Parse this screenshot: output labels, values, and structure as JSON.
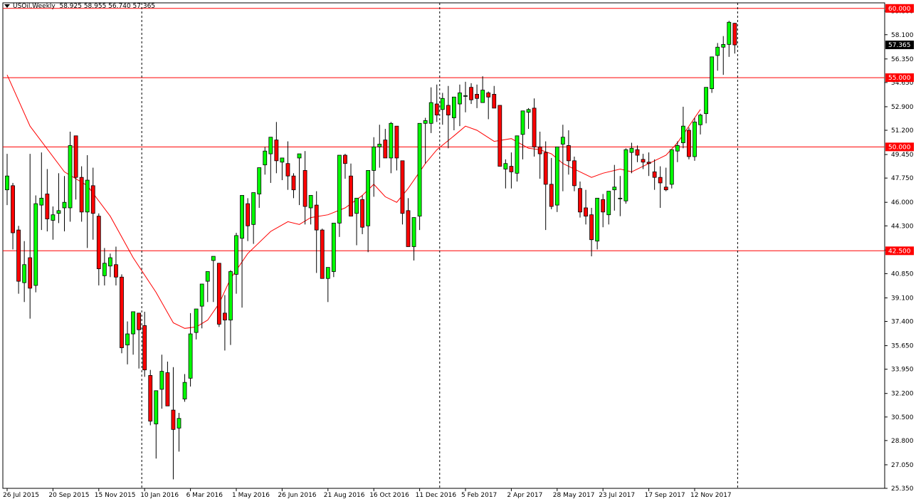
{
  "header": {
    "symbol": "USOil,Weekly",
    "ohlc": "58.925 58.955 56.740 57.365"
  },
  "chart_data": {
    "type": "candlestick",
    "symbol": "USOil",
    "timeframe": "Weekly",
    "ylim": [
      25.35,
      60.4
    ],
    "price_ticks": [
      "59.800",
      "58.100",
      "56.350",
      "54.650",
      "52.900",
      "51.200",
      "49.450",
      "47.750",
      "46.000",
      "44.300",
      "42.550",
      "40.850",
      "39.100",
      "37.400",
      "35.650",
      "33.950",
      "32.200",
      "30.500",
      "28.800",
      "27.050",
      "25.350"
    ],
    "date_ticks": [
      "26 Jul 2015",
      "20 Sep 2015",
      "15 Nov 2015",
      "10 Jan 2016",
      "6 Mar 2016",
      "1 May 2016",
      "26 Jun 2016",
      "21 Aug 2016",
      "16 Oct 2016",
      "11 Dec 2016",
      "5 Feb 2017",
      "2 Apr 2017",
      "28 May 2017",
      "23 Jul 2017",
      "17 Sep 2017",
      "12 Nov 2017"
    ],
    "date_tick_index": [
      0,
      8,
      16,
      24,
      32,
      40,
      48,
      56,
      64,
      72,
      80,
      88,
      96,
      104,
      112,
      120
    ],
    "horizontal_levels": [
      {
        "value": 60.0,
        "label": "60.000"
      },
      {
        "value": 55.0,
        "label": "55.000"
      },
      {
        "value": 50.0,
        "label": "50.000"
      },
      {
        "value": 42.5,
        "label": "42.500"
      }
    ],
    "current_price": {
      "value": 57.365,
      "label": "57.365"
    },
    "period_separators_index": [
      23.5,
      75.5,
      127.5
    ],
    "moving_average": {
      "color": "#ff0000",
      "points": [
        [
          0,
          55.2
        ],
        [
          4,
          51.5
        ],
        [
          10,
          48.2
        ],
        [
          14,
          47.2
        ],
        [
          18,
          45.0
        ],
        [
          22,
          42.0
        ],
        [
          26,
          39.5
        ],
        [
          29,
          37.3
        ],
        [
          31,
          36.9
        ],
        [
          33,
          37.0
        ],
        [
          35,
          37.5
        ],
        [
          37,
          38.7
        ],
        [
          39,
          40.5
        ],
        [
          42,
          42.3
        ],
        [
          46,
          43.9
        ],
        [
          49,
          44.6
        ],
        [
          51,
          44.4
        ],
        [
          53,
          44.9
        ],
        [
          56,
          45.1
        ],
        [
          59,
          45.6
        ],
        [
          62,
          46.5
        ],
        [
          64,
          47.3
        ],
        [
          66,
          46.4
        ],
        [
          68,
          46.0
        ],
        [
          70,
          47.0
        ],
        [
          73,
          48.8
        ],
        [
          75,
          49.8
        ],
        [
          78,
          50.8
        ],
        [
          80,
          51.5
        ],
        [
          82,
          51.2
        ],
        [
          85,
          50.4
        ],
        [
          88,
          50.6
        ],
        [
          91,
          49.9
        ],
        [
          93,
          49.8
        ],
        [
          95,
          49.5
        ],
        [
          97,
          48.8
        ],
        [
          100,
          48.2
        ],
        [
          102,
          47.8
        ],
        [
          104,
          48.1
        ],
        [
          107,
          48.4
        ],
        [
          109,
          48.2
        ],
        [
          111,
          48.6
        ],
        [
          113,
          49.0
        ],
        [
          115,
          49.4
        ],
        [
          117,
          50.3
        ],
        [
          119,
          51.5
        ],
        [
          121,
          52.7
        ]
      ]
    },
    "candles_ohlc": [
      [
        46.9,
        49.5,
        45.8,
        47.9
      ],
      [
        47.2,
        47.4,
        42.6,
        43.8
      ],
      [
        44.0,
        44.3,
        39.4,
        40.3
      ],
      [
        40.2,
        43.2,
        38.8,
        41.5
      ],
      [
        42.0,
        49.5,
        37.6,
        39.8
      ],
      [
        40.0,
        46.5,
        39.5,
        45.9
      ],
      [
        45.8,
        49.6,
        44.0,
        46.3
      ],
      [
        46.6,
        48.4,
        43.9,
        44.8
      ],
      [
        44.7,
        45.7,
        43.3,
        45.1
      ],
      [
        45.2,
        48.1,
        44.5,
        45.4
      ],
      [
        45.6,
        47.9,
        43.9,
        46.0
      ],
      [
        45.6,
        51.1,
        44.6,
        50.1
      ],
      [
        50.8,
        49.1,
        46.2,
        47.8
      ],
      [
        47.8,
        48.6,
        44.6,
        45.3
      ],
      [
        45.3,
        49.4,
        42.7,
        47.6
      ],
      [
        47.2,
        48.5,
        43.3,
        45.2
      ],
      [
        45.0,
        45.2,
        40.0,
        41.2
      ],
      [
        40.7,
        42.7,
        40.0,
        41.6
      ],
      [
        41.4,
        42.3,
        40.6,
        42.0
      ],
      [
        41.5,
        42.8,
        40.0,
        40.6
      ],
      [
        40.6,
        40.8,
        35.1,
        35.5
      ],
      [
        35.7,
        37.4,
        34.3,
        36.5
      ],
      [
        36.5,
        38.0,
        35.0,
        38.1
      ],
      [
        38.0,
        38.0,
        34.0,
        36.8
      ],
      [
        37.1,
        38.1,
        33.4,
        33.9
      ],
      [
        33.5,
        33.9,
        29.9,
        30.2
      ],
      [
        30.0,
        30.6,
        27.5,
        32.4
      ],
      [
        32.5,
        35.0,
        31.1,
        33.8
      ],
      [
        33.7,
        34.5,
        31.8,
        31.3
      ],
      [
        31.0,
        34.1,
        26.0,
        29.6
      ],
      [
        29.7,
        30.8,
        28.0,
        30.4
      ],
      [
        31.8,
        33.6,
        31.6,
        33.0
      ],
      [
        33.3,
        38.0,
        32.7,
        36.5
      ],
      [
        36.6,
        38.1,
        36.1,
        38.3
      ],
      [
        38.5,
        40.0,
        36.9,
        40.1
      ],
      [
        40.3,
        40.5,
        38.8,
        41.0
      ],
      [
        41.8,
        41.5,
        38.8,
        42.1
      ],
      [
        41.6,
        39.9,
        37.0,
        37.2
      ],
      [
        38.0,
        39.3,
        35.3,
        37.5
      ],
      [
        37.5,
        41.1,
        35.7,
        41.0
      ],
      [
        40.8,
        43.8,
        39.4,
        43.6
      ],
      [
        43.4,
        44.5,
        38.4,
        46.5
      ],
      [
        45.9,
        46.3,
        43.2,
        44.3
      ],
      [
        44.4,
        46.5,
        43.0,
        46.7
      ],
      [
        46.6,
        48.0,
        45.6,
        48.5
      ],
      [
        48.7,
        50.0,
        48.0,
        49.7
      ],
      [
        49.5,
        49.9,
        47.4,
        50.7
      ],
      [
        50.5,
        51.8,
        48.1,
        49.0
      ],
      [
        48.9,
        49.2,
        47.6,
        49.2
      ],
      [
        48.8,
        50.4,
        46.9,
        47.9
      ],
      [
        47.9,
        48.1,
        46.3,
        46.9
      ],
      [
        49.2,
        49.3,
        45.8,
        49.5
      ],
      [
        48.3,
        49.7,
        44.4,
        45.7
      ],
      [
        45.6,
        46.0,
        44.4,
        46.5
      ],
      [
        45.8,
        46.8,
        40.9,
        44.0
      ],
      [
        44.0,
        44.1,
        41.5,
        40.5
      ],
      [
        40.5,
        40.8,
        38.8,
        41.3
      ],
      [
        41.0,
        41.3,
        40.6,
        44.5
      ],
      [
        44.5,
        49.0,
        43.5,
        49.4
      ],
      [
        49.4,
        49.5,
        47.7,
        48.8
      ],
      [
        47.9,
        48.8,
        45.6,
        45.0
      ],
      [
        45.2,
        46.2,
        42.9,
        46.3
      ],
      [
        46.2,
        46.5,
        43.7,
        44.2
      ],
      [
        44.3,
        47.5,
        42.4,
        48.3
      ],
      [
        48.3,
        50.7,
        46.4,
        50.0
      ],
      [
        50.0,
        51.6,
        48.5,
        50.2
      ],
      [
        50.5,
        51.3,
        49.8,
        49.2
      ],
      [
        49.2,
        51.8,
        48.1,
        51.7
      ],
      [
        51.5,
        49.6,
        48.3,
        49.2
      ],
      [
        49.0,
        47.2,
        44.4,
        45.2
      ],
      [
        45.4,
        46.3,
        43.3,
        42.8
      ],
      [
        42.8,
        43.2,
        41.8,
        44.9
      ],
      [
        45.0,
        46.6,
        44.0,
        51.7
      ],
      [
        51.7,
        52.1,
        48.8,
        51.9
      ],
      [
        51.7,
        54.3,
        51.0,
        53.2
      ],
      [
        53.1,
        54.5,
        51.8,
        52.3
      ],
      [
        52.7,
        53.9,
        51.6,
        53.5
      ],
      [
        53.0,
        54.4,
        49.9,
        52.3
      ],
      [
        52.1,
        53.6,
        51.2,
        53.6
      ],
      [
        53.1,
        54.5,
        51.5,
        53.9
      ],
      [
        53.7,
        54.7,
        52.5,
        53.7
      ],
      [
        54.3,
        54.6,
        53.1,
        53.4
      ],
      [
        53.8,
        54.5,
        52.8,
        53.5
      ],
      [
        53.2,
        55.1,
        53.2,
        54.1
      ],
      [
        53.9,
        54.0,
        52.0,
        53.6
      ],
      [
        53.8,
        54.4,
        52.8,
        52.8
      ],
      [
        53.0,
        50.8,
        48.7,
        48.6
      ],
      [
        48.4,
        49.1,
        47.0,
        48.8
      ],
      [
        48.6,
        49.6,
        47.0,
        48.2
      ],
      [
        48.1,
        49.1,
        47.5,
        50.8
      ],
      [
        50.9,
        52.0,
        49.1,
        52.6
      ],
      [
        52.5,
        52.8,
        51.3,
        52.7
      ],
      [
        52.8,
        53.5,
        49.3,
        50.0
      ],
      [
        50.0,
        51.1,
        47.7,
        49.5
      ],
      [
        49.6,
        50.4,
        44.0,
        47.3
      ],
      [
        47.3,
        49.2,
        45.5,
        45.7
      ],
      [
        45.8,
        48.0,
        45.3,
        50.0
      ],
      [
        50.2,
        51.6,
        46.8,
        50.7
      ],
      [
        50.1,
        51.2,
        48.0,
        49.0
      ],
      [
        49.0,
        49.3,
        46.8,
        47.2
      ],
      [
        47.0,
        47.5,
        44.9,
        45.3
      ],
      [
        45.6,
        46.9,
        44.4,
        45.0
      ],
      [
        45.1,
        45.6,
        42.1,
        43.3
      ],
      [
        43.2,
        46.1,
        42.6,
        46.3
      ],
      [
        46.2,
        46.6,
        44.2,
        45.3
      ],
      [
        45.1,
        46.1,
        44.4,
        46.8
      ],
      [
        46.9,
        48.7,
        45.4,
        47.1
      ],
      [
        46.3,
        47.9,
        45.0,
        46.3
      ],
      [
        46.1,
        49.9,
        45.9,
        49.8
      ],
      [
        49.6,
        50.3,
        48.1,
        49.9
      ],
      [
        49.8,
        50.1,
        48.9,
        49.4
      ],
      [
        49.1,
        49.5,
        48.4,
        48.9
      ],
      [
        48.9,
        49.6,
        47.9,
        48.8
      ],
      [
        48.2,
        49.1,
        46.9,
        47.8
      ],
      [
        47.8,
        48.6,
        45.6,
        47.4
      ],
      [
        47.1,
        48.5,
        46.8,
        46.9
      ],
      [
        47.3,
        49.3,
        47.0,
        49.8
      ],
      [
        49.7,
        50.4,
        48.9,
        50.1
      ],
      [
        50.3,
        52.9,
        49.9,
        51.5
      ],
      [
        51.2,
        51.4,
        49.1,
        49.3
      ],
      [
        49.3,
        52.1,
        49.0,
        51.8
      ],
      [
        51.6,
        52.4,
        50.9,
        52.3
      ],
      [
        52.4,
        54.0,
        51.7,
        54.3
      ],
      [
        54.2,
        56.5,
        53.9,
        56.5
      ],
      [
        56.6,
        57.5,
        55.5,
        57.2
      ],
      [
        57.2,
        58.0,
        55.2,
        57.4
      ],
      [
        57.4,
        59.1,
        56.5,
        59.0
      ],
      [
        58.925,
        58.955,
        56.74,
        57.365
      ]
    ]
  }
}
